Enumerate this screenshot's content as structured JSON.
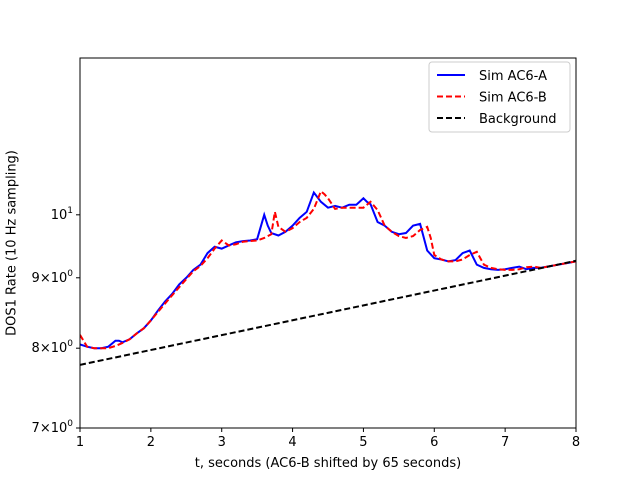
{
  "chart_data": {
    "type": "line",
    "title": "",
    "xlabel": "t, seconds (AC6-B shifted by 65 seconds)",
    "ylabel": "DOS1 Rate (10 Hz sampling)",
    "xlim": [
      1,
      8
    ],
    "ylim": [
      7,
      13
    ],
    "yscale": "log",
    "grid": false,
    "legend_position": "upper right",
    "x_ticks": [
      {
        "value": 1,
        "label": "1"
      },
      {
        "value": 2,
        "label": "2"
      },
      {
        "value": 3,
        "label": "3"
      },
      {
        "value": 4,
        "label": "4"
      },
      {
        "value": 5,
        "label": "5"
      },
      {
        "value": 6,
        "label": "6"
      },
      {
        "value": 7,
        "label": "7"
      },
      {
        "value": 8,
        "label": "8"
      }
    ],
    "y_ticks": [
      {
        "value": 7,
        "base": "7×10",
        "exp": "0"
      },
      {
        "value": 8,
        "base": "8×10",
        "exp": "0"
      },
      {
        "value": 9,
        "base": "9×10",
        "exp": "0"
      },
      {
        "value": 10,
        "base": "10",
        "exp": "1"
      }
    ],
    "series": [
      {
        "name": "Sim AC6-A",
        "color": "#0000ff",
        "dash": "solid",
        "x": [
          1.0,
          1.1,
          1.2,
          1.3,
          1.4,
          1.5,
          1.55,
          1.6,
          1.7,
          1.8,
          1.9,
          2.0,
          2.1,
          2.2,
          2.3,
          2.4,
          2.5,
          2.6,
          2.7,
          2.8,
          2.9,
          3.0,
          3.1,
          3.2,
          3.3,
          3.4,
          3.5,
          3.6,
          3.65,
          3.7,
          3.8,
          3.9,
          4.0,
          4.1,
          4.2,
          4.3,
          4.35,
          4.4,
          4.5,
          4.6,
          4.7,
          4.8,
          4.9,
          5.0,
          5.05,
          5.1,
          5.2,
          5.3,
          5.4,
          5.5,
          5.6,
          5.7,
          5.8,
          5.9,
          6.0,
          6.1,
          6.2,
          6.3,
          6.4,
          6.5,
          6.6,
          6.7,
          6.8,
          6.9,
          7.0,
          7.1,
          7.2,
          7.3,
          7.4,
          7.5,
          7.6,
          7.7,
          7.8,
          7.9,
          8.0
        ],
        "y": [
          8.05,
          8.02,
          8.0,
          8.0,
          8.02,
          8.1,
          8.1,
          8.08,
          8.12,
          8.2,
          8.27,
          8.38,
          8.52,
          8.65,
          8.76,
          8.9,
          9.0,
          9.12,
          9.2,
          9.38,
          9.48,
          9.45,
          9.5,
          9.55,
          9.57,
          9.58,
          9.6,
          10.0,
          9.82,
          9.7,
          9.66,
          9.72,
          9.82,
          9.95,
          10.05,
          10.38,
          10.3,
          10.22,
          10.12,
          10.15,
          10.12,
          10.17,
          10.17,
          10.28,
          10.22,
          10.18,
          9.88,
          9.82,
          9.72,
          9.68,
          9.7,
          9.82,
          9.85,
          9.42,
          9.3,
          9.28,
          9.25,
          9.27,
          9.38,
          9.42,
          9.2,
          9.15,
          9.13,
          9.12,
          9.13,
          9.15,
          9.17,
          9.13,
          9.15,
          9.15,
          9.17,
          9.19,
          9.21,
          9.23,
          9.25
        ]
      },
      {
        "name": "Sim AC6-B",
        "color": "#ff0000",
        "dash": "dashed",
        "x": [
          1.0,
          1.1,
          1.2,
          1.3,
          1.4,
          1.5,
          1.6,
          1.7,
          1.8,
          1.9,
          2.0,
          2.1,
          2.2,
          2.3,
          2.4,
          2.5,
          2.6,
          2.7,
          2.8,
          2.9,
          3.0,
          3.1,
          3.2,
          3.3,
          3.4,
          3.5,
          3.6,
          3.7,
          3.75,
          3.8,
          3.9,
          4.0,
          4.1,
          4.2,
          4.3,
          4.4,
          4.45,
          4.5,
          4.6,
          4.7,
          4.8,
          4.9,
          5.0,
          5.1,
          5.2,
          5.3,
          5.4,
          5.5,
          5.6,
          5.7,
          5.8,
          5.9,
          5.95,
          6.0,
          6.1,
          6.2,
          6.3,
          6.4,
          6.5,
          6.6,
          6.7,
          6.8,
          6.9,
          7.0,
          7.1,
          7.2,
          7.3,
          7.4,
          7.5,
          7.6,
          7.7,
          7.8,
          7.9,
          8.0
        ],
        "y": [
          8.18,
          8.02,
          8.0,
          8.0,
          8.0,
          8.03,
          8.07,
          8.12,
          8.2,
          8.27,
          8.38,
          8.5,
          8.62,
          8.74,
          8.86,
          8.98,
          9.1,
          9.18,
          9.3,
          9.45,
          9.58,
          9.5,
          9.52,
          9.56,
          9.57,
          9.58,
          9.62,
          9.68,
          10.05,
          9.8,
          9.72,
          9.78,
          9.88,
          9.95,
          10.1,
          10.4,
          10.35,
          10.28,
          10.1,
          10.12,
          10.12,
          10.12,
          10.12,
          10.22,
          10.08,
          9.82,
          9.72,
          9.65,
          9.62,
          9.65,
          9.75,
          9.8,
          9.62,
          9.35,
          9.28,
          9.25,
          9.25,
          9.28,
          9.35,
          9.4,
          9.2,
          9.15,
          9.13,
          9.12,
          9.12,
          9.13,
          9.16,
          9.17,
          9.15,
          9.17,
          9.19,
          9.21,
          9.23,
          9.25
        ]
      },
      {
        "name": "Background",
        "color": "#000000",
        "dash": "dashed",
        "x": [
          1,
          8
        ],
        "y": [
          7.78,
          9.26
        ]
      }
    ]
  }
}
